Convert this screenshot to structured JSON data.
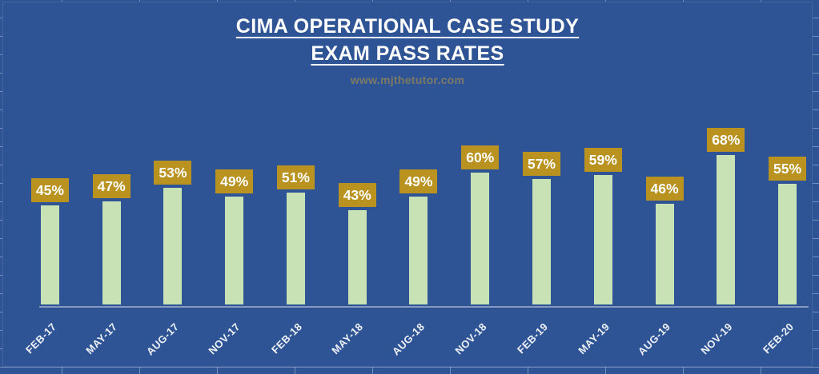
{
  "title": {
    "line1": "CIMA OPERATIONAL CASE STUDY",
    "line2": "EXAM PASS RATES",
    "watermark": "www.mjthetutor.com"
  },
  "chart_data": {
    "type": "bar",
    "title": "CIMA OPERATIONAL CASE STUDY EXAM PASS RATES",
    "subtitle": "www.mjthetutor.com",
    "categories": [
      "FEB-17",
      "MAY-17",
      "AUG-17",
      "NOV-17",
      "FEB-18",
      "MAY-18",
      "AUG-18",
      "NOV-18",
      "FEB-19",
      "MAY-19",
      "AUG-19",
      "NOV-19",
      "FEB-20"
    ],
    "values": [
      45,
      47,
      53,
      49,
      51,
      43,
      49,
      60,
      57,
      59,
      46,
      68,
      55
    ],
    "data_labels": [
      "45%",
      "47%",
      "53%",
      "49%",
      "51%",
      "43%",
      "49%",
      "60%",
      "57%",
      "59%",
      "46%",
      "68%",
      "55%"
    ],
    "xlabel": "",
    "ylabel": "",
    "ylim": [
      0,
      70
    ],
    "gridlines": false,
    "legend": false,
    "data_labels_shown": true,
    "category_label_rotation_deg": 45
  },
  "colors": {
    "background": "#2f5496",
    "bar": "#c8e2b5",
    "data_label_bg": "#b99220",
    "data_label_text": "#ffffff",
    "axis_line": "#8499bd",
    "category_text": "#eef2f8",
    "title_text": "#ffffff",
    "watermark_text": "#7c7a64",
    "worksheet_gridline": "#adbedc"
  }
}
